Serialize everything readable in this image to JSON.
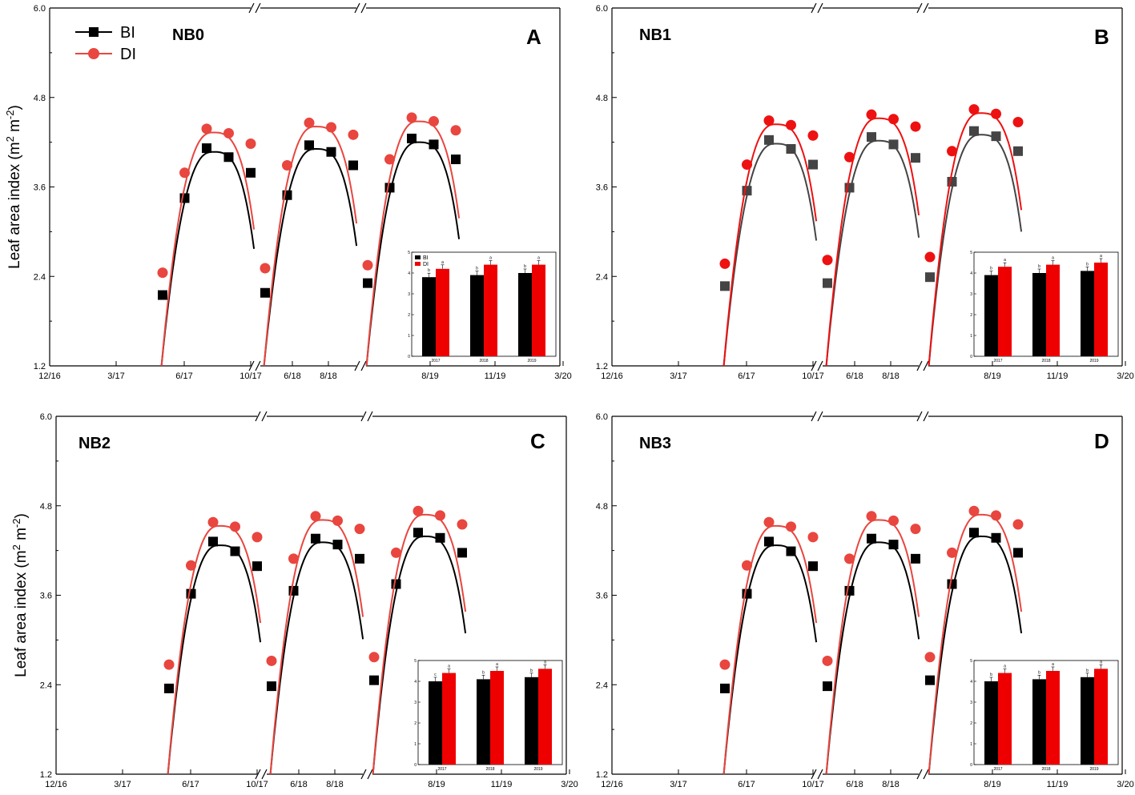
{
  "colors": {
    "bi": "#000000",
    "bi_alt": "#444444",
    "di_light": "#e8463f",
    "di_strong": "#ee1111"
  },
  "legend": {
    "bi": "BI",
    "di": "DI"
  },
  "ylabel_main": "Leaf area index (m",
  "ylabel_sup1": "2",
  "ylabel_mid": " m",
  "ylabel_sup2": "-2",
  "ylabel_end": ")",
  "chart_data": [
    {
      "type": "scatter",
      "panel": "A",
      "treatment": "NB0",
      "ylim": [
        1.2,
        6.0
      ],
      "yticks": [
        "1.2",
        "2.4",
        "3.6",
        "4.8",
        "6.0"
      ],
      "xtick_labels": [
        "12/16",
        "3/17",
        "6/17",
        "10/17",
        "6/18",
        "8/18",
        "8/19",
        "11/19",
        "3/20"
      ],
      "series": [
        {
          "name": "BI",
          "segments": [
            {
              "points": [
                [
                  5.0,
                  2.15
                ],
                [
                  6.0,
                  3.45
                ],
                [
                  7.0,
                  4.12
                ],
                [
                  8.0,
                  4.0
                ],
                [
                  9.0,
                  3.79
                ]
              ]
            },
            {
              "points": [
                [
                  5.0,
                  2.18
                ],
                [
                  6.0,
                  3.49
                ],
                [
                  7.0,
                  4.16
                ],
                [
                  8.0,
                  4.07
                ],
                [
                  9.0,
                  3.89
                ]
              ]
            },
            {
              "points": [
                [
                  5.0,
                  2.31
                ],
                [
                  6.0,
                  3.59
                ],
                [
                  7.0,
                  4.25
                ],
                [
                  8.0,
                  4.17
                ],
                [
                  9.0,
                  3.97
                ]
              ]
            }
          ]
        },
        {
          "name": "DI",
          "segments": [
            {
              "points": [
                [
                  5.0,
                  2.45
                ],
                [
                  6.0,
                  3.79
                ],
                [
                  7.0,
                  4.38
                ],
                [
                  8.0,
                  4.32
                ],
                [
                  9.0,
                  4.18
                ]
              ]
            },
            {
              "points": [
                [
                  5.0,
                  2.51
                ],
                [
                  6.0,
                  3.89
                ],
                [
                  7.0,
                  4.46
                ],
                [
                  8.0,
                  4.4
                ],
                [
                  9.0,
                  4.3
                ]
              ]
            },
            {
              "points": [
                [
                  5.0,
                  2.55
                ],
                [
                  6.0,
                  3.97
                ],
                [
                  7.0,
                  4.53
                ],
                [
                  8.0,
                  4.48
                ],
                [
                  9.0,
                  4.36
                ]
              ]
            }
          ]
        }
      ],
      "inset": {
        "type": "bar",
        "categories": [
          "2017",
          "2018",
          "2019"
        ],
        "ylim": [
          0,
          5
        ],
        "yticks": [
          "0",
          "1",
          "2",
          "3",
          "4",
          "5"
        ],
        "series": [
          {
            "name": "BI",
            "values": [
              3.8,
              3.9,
              4.0
            ],
            "letters": [
              "b",
              "b",
              "b"
            ]
          },
          {
            "name": "DI",
            "values": [
              4.2,
              4.4,
              4.4
            ],
            "letters": [
              "a",
              "a",
              "a"
            ]
          }
        ]
      }
    },
    {
      "type": "scatter",
      "panel": "B",
      "treatment": "NB1",
      "ylim": [
        1.2,
        6.0
      ],
      "yticks": [
        "1.2",
        "2.4",
        "3.6",
        "4.8",
        "6.0"
      ],
      "xtick_labels": [
        "12/16",
        "3/17",
        "6/17",
        "10/17",
        "6/18",
        "8/18",
        "8/19",
        "11/19",
        "3/20"
      ],
      "series": [
        {
          "name": "BI",
          "segments": [
            {
              "points": [
                [
                  5.0,
                  2.27
                ],
                [
                  6.0,
                  3.55
                ],
                [
                  7.0,
                  4.23
                ],
                [
                  8.0,
                  4.11
                ],
                [
                  9.0,
                  3.9
                ]
              ]
            },
            {
              "points": [
                [
                  5.0,
                  2.31
                ],
                [
                  6.0,
                  3.59
                ],
                [
                  7.0,
                  4.27
                ],
                [
                  8.0,
                  4.17
                ],
                [
                  9.0,
                  3.99
                ]
              ]
            },
            {
              "points": [
                [
                  5.0,
                  2.39
                ],
                [
                  6.0,
                  3.67
                ],
                [
                  7.0,
                  4.35
                ],
                [
                  8.0,
                  4.28
                ],
                [
                  9.0,
                  4.08
                ]
              ]
            }
          ]
        },
        {
          "name": "DI",
          "segments": [
            {
              "points": [
                [
                  5.0,
                  2.57
                ],
                [
                  6.0,
                  3.9
                ],
                [
                  7.0,
                  4.49
                ],
                [
                  8.0,
                  4.43
                ],
                [
                  9.0,
                  4.29
                ]
              ]
            },
            {
              "points": [
                [
                  5.0,
                  2.62
                ],
                [
                  6.0,
                  4.0
                ],
                [
                  7.0,
                  4.57
                ],
                [
                  8.0,
                  4.51
                ],
                [
                  9.0,
                  4.41
                ]
              ]
            },
            {
              "points": [
                [
                  5.0,
                  2.66
                ],
                [
                  6.0,
                  4.08
                ],
                [
                  7.0,
                  4.64
                ],
                [
                  8.0,
                  4.58
                ],
                [
                  9.0,
                  4.47
                ]
              ]
            }
          ]
        }
      ],
      "inset": {
        "type": "bar",
        "categories": [
          "2017",
          "2018",
          "2019"
        ],
        "ylim": [
          0,
          5
        ],
        "yticks": [
          "0",
          "1",
          "2",
          "3",
          "4",
          "5"
        ],
        "series": [
          {
            "name": "BI",
            "values": [
              3.9,
              4.0,
              4.1
            ],
            "letters": [
              "b",
              "b",
              "b"
            ]
          },
          {
            "name": "DI",
            "values": [
              4.3,
              4.4,
              4.5
            ],
            "letters": [
              "a",
              "a",
              "a"
            ]
          }
        ]
      }
    },
    {
      "type": "scatter",
      "panel": "C",
      "treatment": "NB2",
      "ylim": [
        1.2,
        6.0
      ],
      "yticks": [
        "1.2",
        "2.4",
        "3.6",
        "4.8",
        "6.0"
      ],
      "xtick_labels": [
        "12/16",
        "3/17",
        "6/17",
        "10/17",
        "6/18",
        "8/18",
        "8/19",
        "11/19",
        "3/20"
      ],
      "series": [
        {
          "name": "BI",
          "segments": [
            {
              "points": [
                [
                  5.0,
                  2.35
                ],
                [
                  6.0,
                  3.62
                ],
                [
                  7.0,
                  4.32
                ],
                [
                  8.0,
                  4.19
                ],
                [
                  9.0,
                  3.99
                ]
              ]
            },
            {
              "points": [
                [
                  5.0,
                  2.38
                ],
                [
                  6.0,
                  3.66
                ],
                [
                  7.0,
                  4.36
                ],
                [
                  8.0,
                  4.28
                ],
                [
                  9.0,
                  4.09
                ]
              ]
            },
            {
              "points": [
                [
                  5.0,
                  2.46
                ],
                [
                  6.0,
                  3.75
                ],
                [
                  7.0,
                  4.44
                ],
                [
                  8.0,
                  4.37
                ],
                [
                  9.0,
                  4.17
                ]
              ]
            }
          ]
        },
        {
          "name": "DI",
          "segments": [
            {
              "points": [
                [
                  5.0,
                  2.67
                ],
                [
                  6.0,
                  4.0
                ],
                [
                  7.0,
                  4.58
                ],
                [
                  8.0,
                  4.52
                ],
                [
                  9.0,
                  4.38
                ]
              ]
            },
            {
              "points": [
                [
                  5.0,
                  2.72
                ],
                [
                  6.0,
                  4.09
                ],
                [
                  7.0,
                  4.66
                ],
                [
                  8.0,
                  4.6
                ],
                [
                  9.0,
                  4.49
                ]
              ]
            },
            {
              "points": [
                [
                  5.0,
                  2.77
                ],
                [
                  6.0,
                  4.17
                ],
                [
                  7.0,
                  4.73
                ],
                [
                  8.0,
                  4.67
                ],
                [
                  9.0,
                  4.55
                ]
              ]
            }
          ]
        }
      ],
      "inset": {
        "type": "bar",
        "categories": [
          "2017",
          "2018",
          "2019"
        ],
        "ylim": [
          0,
          5
        ],
        "yticks": [
          "0",
          "1",
          "2",
          "3",
          "4",
          "5"
        ],
        "series": [
          {
            "name": "BI",
            "values": [
              4.0,
              4.1,
              4.2
            ],
            "letters": [
              "c",
              "b",
              "b"
            ]
          },
          {
            "name": "DI",
            "values": [
              4.4,
              4.5,
              4.6
            ],
            "letters": [
              "a",
              "a",
              "a"
            ]
          }
        ]
      }
    },
    {
      "type": "scatter",
      "panel": "D",
      "treatment": "NB3",
      "ylim": [
        1.2,
        6.0
      ],
      "yticks": [
        "1.2",
        "2.4",
        "3.6",
        "4.8",
        "6.0"
      ],
      "xtick_labels": [
        "12/16",
        "3/17",
        "6/17",
        "10/17",
        "6/18",
        "8/18",
        "8/19",
        "11/19",
        "3/20"
      ],
      "series": [
        {
          "name": "BI",
          "segments": [
            {
              "points": [
                [
                  5.0,
                  2.35
                ],
                [
                  6.0,
                  3.62
                ],
                [
                  7.0,
                  4.32
                ],
                [
                  8.0,
                  4.19
                ],
                [
                  9.0,
                  3.99
                ]
              ]
            },
            {
              "points": [
                [
                  5.0,
                  2.38
                ],
                [
                  6.0,
                  3.66
                ],
                [
                  7.0,
                  4.36
                ],
                [
                  8.0,
                  4.28
                ],
                [
                  9.0,
                  4.09
                ]
              ]
            },
            {
              "points": [
                [
                  5.0,
                  2.46
                ],
                [
                  6.0,
                  3.75
                ],
                [
                  7.0,
                  4.44
                ],
                [
                  8.0,
                  4.37
                ],
                [
                  9.0,
                  4.17
                ]
              ]
            }
          ]
        },
        {
          "name": "DI",
          "segments": [
            {
              "points": [
                [
                  5.0,
                  2.67
                ],
                [
                  6.0,
                  4.0
                ],
                [
                  7.0,
                  4.58
                ],
                [
                  8.0,
                  4.52
                ],
                [
                  9.0,
                  4.38
                ]
              ]
            },
            {
              "points": [
                [
                  5.0,
                  2.72
                ],
                [
                  6.0,
                  4.09
                ],
                [
                  7.0,
                  4.66
                ],
                [
                  8.0,
                  4.6
                ],
                [
                  9.0,
                  4.49
                ]
              ]
            },
            {
              "points": [
                [
                  5.0,
                  2.77
                ],
                [
                  6.0,
                  4.17
                ],
                [
                  7.0,
                  4.73
                ],
                [
                  8.0,
                  4.67
                ],
                [
                  9.0,
                  4.55
                ]
              ]
            }
          ]
        }
      ],
      "inset": {
        "type": "bar",
        "categories": [
          "2017",
          "2018",
          "2019"
        ],
        "ylim": [
          0,
          5
        ],
        "yticks": [
          "0",
          "1",
          "2",
          "3",
          "4",
          "5"
        ],
        "series": [
          {
            "name": "BI",
            "values": [
              4.0,
              4.1,
              4.2
            ],
            "letters": [
              "b",
              "b",
              "b"
            ]
          },
          {
            "name": "DI",
            "values": [
              4.4,
              4.5,
              4.6
            ],
            "letters": [
              "a",
              "a",
              "a"
            ]
          }
        ]
      }
    }
  ]
}
